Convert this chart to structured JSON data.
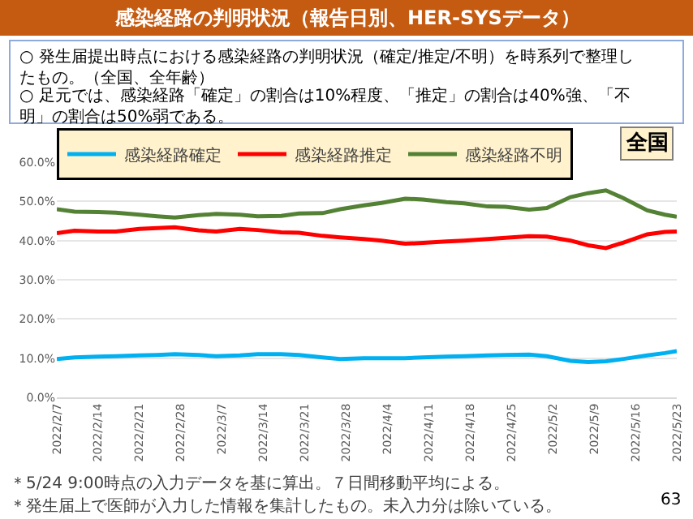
{
  "chart_data": {
    "type": "line",
    "title": "感染経路の判明状況（報告日別、HER-SYSデータ）",
    "annotations": [
      "○ 発生届提出時点における感染経路の判明状況（確定/推定/不明）を時系列で整理したもの。（全国、全年齢）",
      "○ 足元では、感染経路「確定」の割合は10%程度、「推定」の割合は40%強、「不明」の割合は50%弱である。",
      "全国",
      "＊5/24 9:00時点の入力データを基に算出。７日間移動平均による。",
      "＊発生届上で医師が入力した情報を集計したもの。未入力分は除いている。",
      "63"
    ],
    "x": [
      "2022-02-07",
      "2022-02-10",
      "2022-02-14",
      "2022-02-17",
      "2022-02-21",
      "2022-02-24",
      "2022-02-27",
      "2022-03-03",
      "2022-03-06",
      "2022-03-10",
      "2022-03-13",
      "2022-03-17",
      "2022-03-20",
      "2022-03-24",
      "2022-03-27",
      "2022-03-31",
      "2022-04-03",
      "2022-04-07",
      "2022-04-10",
      "2022-04-14",
      "2022-04-17",
      "2022-04-21",
      "2022-04-24",
      "2022-04-28",
      "2022-05-01",
      "2022-05-05",
      "2022-05-08",
      "2022-05-11",
      "2022-05-14",
      "2022-05-18",
      "2022-05-21",
      "2022-05-23"
    ],
    "series": [
      {
        "name": "感染経路確定",
        "color": "#00b0f0",
        "values": [
          9.8,
          10.2,
          10.4,
          10.5,
          10.7,
          10.8,
          11.0,
          10.8,
          10.5,
          10.7,
          11.0,
          11.0,
          10.8,
          10.2,
          9.8,
          10.0,
          10.0,
          10.0,
          10.2,
          10.4,
          10.5,
          10.7,
          10.8,
          10.9,
          10.5,
          9.3,
          9.0,
          9.2,
          9.8,
          10.7,
          11.3,
          11.8
        ]
      },
      {
        "name": "感染経路推定",
        "color": "#ff0000",
        "values": [
          41.9,
          42.5,
          42.3,
          42.3,
          43.0,
          43.2,
          43.4,
          42.6,
          42.3,
          43.0,
          42.7,
          42.1,
          42.0,
          41.2,
          40.8,
          40.4,
          40.0,
          39.2,
          39.4,
          39.8,
          40.0,
          40.4,
          40.7,
          41.1,
          41.0,
          40.0,
          38.8,
          38.1,
          39.5,
          41.6,
          42.2,
          42.3
        ]
      },
      {
        "name": "感染経路不明",
        "color": "#548235",
        "values": [
          48.0,
          47.4,
          47.3,
          47.1,
          46.6,
          46.2,
          45.9,
          46.5,
          46.8,
          46.6,
          46.2,
          46.3,
          46.9,
          47.0,
          48.0,
          49.0,
          49.6,
          50.7,
          50.5,
          49.8,
          49.5,
          48.7,
          48.6,
          47.9,
          48.3,
          51.1,
          52.1,
          52.8,
          50.8,
          47.7,
          46.6,
          46.1
        ]
      }
    ],
    "xlim": [
      "2022-02-07",
      "2022-05-23"
    ],
    "xticks": [
      {
        "value": "2022-02-07",
        "label": "2022/2/7"
      },
      {
        "value": "2022-02-14",
        "label": "2022/2/14"
      },
      {
        "value": "2022-02-21",
        "label": "2022/2/21"
      },
      {
        "value": "2022-02-28",
        "label": "2022/2/28"
      },
      {
        "value": "2022-03-07",
        "label": "2022/3/7"
      },
      {
        "value": "2022-03-14",
        "label": "2022/3/14"
      },
      {
        "value": "2022-03-21",
        "label": "2022/3/21"
      },
      {
        "value": "2022-03-28",
        "label": "2022/3/28"
      },
      {
        "value": "2022-04-04",
        "label": "2022/4/4"
      },
      {
        "value": "2022-04-11",
        "label": "2022/4/11"
      },
      {
        "value": "2022-04-18",
        "label": "2022/4/18"
      },
      {
        "value": "2022-04-25",
        "label": "2022/4/25"
      },
      {
        "value": "2022-05-02",
        "label": "2022/5/2"
      },
      {
        "value": "2022-05-09",
        "label": "2022/5/9"
      },
      {
        "value": "2022-05-16",
        "label": "2022/5/16"
      },
      {
        "value": "2022-05-23",
        "label": "2022/5/23"
      }
    ],
    "ylim": [
      0,
      60
    ],
    "yticks": [
      {
        "value": 0,
        "label": "0.0%"
      },
      {
        "value": 10,
        "label": "10.0%"
      },
      {
        "value": 20,
        "label": "20.0%"
      },
      {
        "value": 30,
        "label": "30.0%"
      },
      {
        "value": 40,
        "label": "40.0%"
      },
      {
        "value": 50,
        "label": "50.0%"
      },
      {
        "value": 60,
        "label": "60.0%"
      }
    ],
    "grid": "y",
    "legend": "top left",
    "marker": "none",
    "line_style": "solid"
  }
}
